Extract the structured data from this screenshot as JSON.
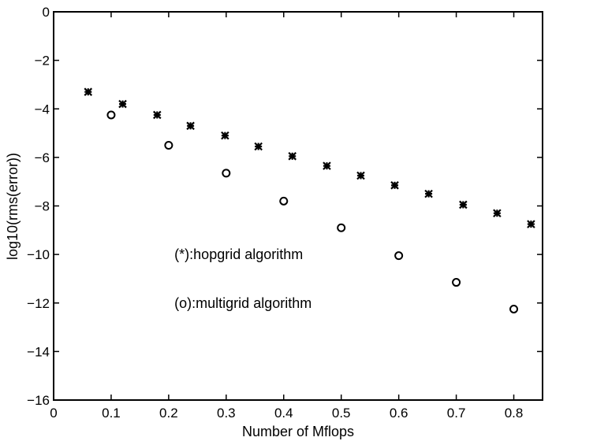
{
  "chart_data": {
    "type": "scatter",
    "title": "",
    "xlabel": "Number of Mflops",
    "ylabel": "log10(rms(error))",
    "xlim": [
      0,
      0.85
    ],
    "ylim": [
      -16,
      0
    ],
    "xticks": [
      0,
      0.1,
      0.2,
      0.3,
      0.4,
      0.5,
      0.6,
      0.7,
      0.8
    ],
    "xtick_labels": [
      "0",
      "0.1",
      "0.2",
      "0.3",
      "0.4",
      "0.5",
      "0.6",
      "0.7",
      "0.8"
    ],
    "yticks": [
      0,
      -2,
      -4,
      -6,
      -8,
      -10,
      -12,
      -14,
      -16
    ],
    "ytick_labels": [
      "0",
      "−2",
      "−4",
      "−6",
      "−8",
      "−10",
      "−12",
      "−14",
      "−16"
    ],
    "grid": false,
    "legend": "none",
    "annotations": [
      {
        "text": "(*):hopgrid algorithm",
        "x": 0.21,
        "y": -10
      },
      {
        "text": "(o):multigrid algorithm",
        "x": 0.21,
        "y": -12
      }
    ],
    "series": [
      {
        "marker": "star",
        "x": [
          0.06,
          0.12,
          0.18,
          0.238,
          0.298,
          0.356,
          0.415,
          0.475,
          0.534,
          0.593,
          0.652,
          0.712,
          0.771,
          0.83
        ],
        "y": [
          -3.3,
          -3.8,
          -4.25,
          -4.7,
          -5.1,
          -5.55,
          -5.95,
          -6.35,
          -6.75,
          -7.15,
          -7.5,
          -7.95,
          -8.3,
          -8.75
        ]
      },
      {
        "marker": "circle",
        "x": [
          0.1,
          0.2,
          0.3,
          0.4,
          0.5,
          0.6,
          0.7,
          0.8
        ],
        "y": [
          -4.25,
          -5.5,
          -6.65,
          -7.8,
          -8.9,
          -10.05,
          -11.15,
          -12.25
        ]
      }
    ]
  }
}
